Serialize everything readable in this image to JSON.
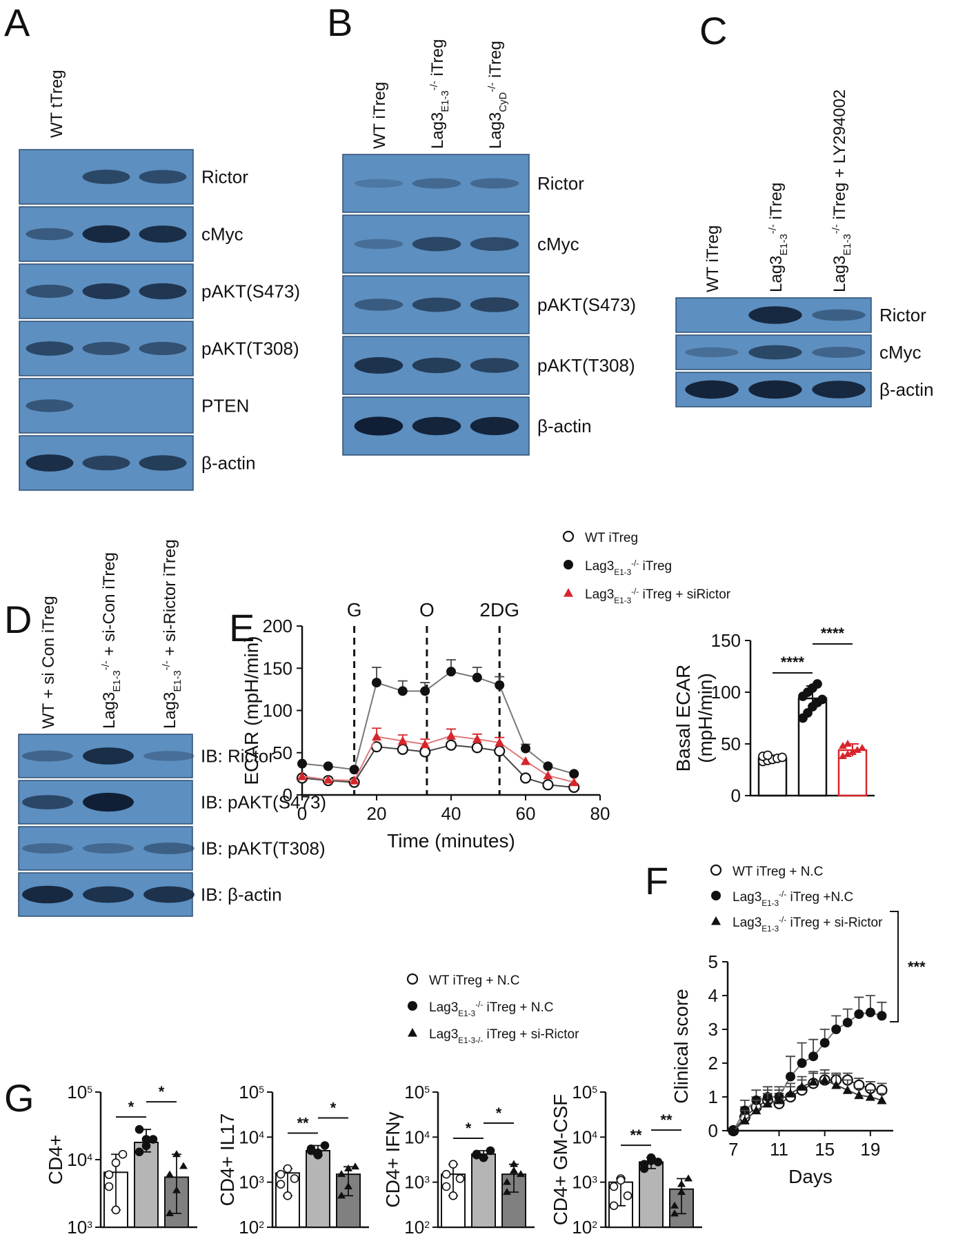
{
  "figure": {
    "panels": [
      "A",
      "B",
      "C",
      "D",
      "E",
      "F",
      "G"
    ],
    "colors": {
      "blot_bg": "#5d8fc0",
      "band": "#0d1a2e",
      "red": "#d7262b",
      "dark_bar": "#808080",
      "mid_bar": "#b5b5b5"
    },
    "A": {
      "lanes": [
        "WT tTreg"
      ],
      "blots": [
        {
          "label": "Rictor",
          "bands": [
            0,
            0.55,
            0.5
          ]
        },
        {
          "label": "cMyc",
          "bands": [
            0.35,
            0.85,
            0.8
          ]
        },
        {
          "label": "pAKT(S473)",
          "bands": [
            0.45,
            0.7,
            0.72
          ]
        },
        {
          "label": "pAKT(T308)",
          "bands": [
            0.55,
            0.45,
            0.45
          ]
        },
        {
          "label": "PTEN",
          "bands": [
            0.4,
            0,
            0
          ]
        },
        {
          "label": "β-actin",
          "bands": [
            0.8,
            0.6,
            0.65
          ]
        }
      ]
    },
    "B": {
      "lanes": [
        {
          "main": "WT iTreg",
          "sub": "",
          "sup": ""
        },
        {
          "main": "Lag3",
          "sub": "E1-3",
          "sup": "-/-",
          "tail": " iTreg"
        },
        {
          "main": "Lag3",
          "sub": "CyD",
          "sup": "-/-",
          "tail": " iTreg"
        }
      ],
      "blots": [
        {
          "label": "Rictor",
          "bands": [
            0.05,
            0.2,
            0.2
          ]
        },
        {
          "label": "cMyc",
          "bands": [
            0.15,
            0.55,
            0.5
          ]
        },
        {
          "label": "pAKT(S473)",
          "bands": [
            0.35,
            0.55,
            0.6
          ]
        },
        {
          "label": "pAKT(T308)",
          "bands": [
            0.75,
            0.65,
            0.6
          ]
        },
        {
          "label": "β-actin",
          "bands": [
            0.95,
            0.9,
            0.9
          ]
        }
      ]
    },
    "C": {
      "lanes": [
        {
          "main": "WT iTreg",
          "sub": "",
          "sup": ""
        },
        {
          "main": "Lag3",
          "sub": "E1-3",
          "sup": "-/-",
          "tail": " iTreg"
        },
        {
          "main": "Lag3",
          "sub": "E1-3",
          "sup": "-/-",
          "tail": " iTreg + LY294002"
        }
      ],
      "blots": [
        {
          "label": "Rictor",
          "bands": [
            0,
            0.85,
            0.3
          ]
        },
        {
          "label": "cMyc",
          "bands": [
            0.15,
            0.55,
            0.25
          ]
        },
        {
          "label": "β-actin",
          "bands": [
            0.9,
            0.9,
            0.85
          ]
        }
      ]
    },
    "D": {
      "lanes": [
        {
          "main": "WT + si Con iTreg",
          "sub": "",
          "sup": ""
        },
        {
          "main": "Lag3",
          "sub": "E1-3",
          "sup": "-/-",
          "tail": " + si-Con iTreg"
        },
        {
          "main": "Lag3",
          "sub": "E1-3",
          "sup": "-/-",
          "tail": " + si-Rictor iTreg"
        }
      ],
      "blots": [
        {
          "label": "IB: Rictor",
          "bands": [
            0.25,
            0.8,
            0.15
          ]
        },
        {
          "label": "IB: pAKT(S473)",
          "bands": [
            0.55,
            0.95,
            0
          ]
        },
        {
          "label": "IB: pAKT(T308)",
          "bands": [
            0.2,
            0.2,
            0.3
          ]
        },
        {
          "label": "IB: β-actin",
          "bands": [
            0.85,
            0.75,
            0.75
          ]
        }
      ]
    },
    "E_legend": [
      {
        "main": "WT iTreg",
        "sub": "",
        "sup": "",
        "tail": "",
        "marker": "open-circle"
      },
      {
        "main": "Lag3",
        "sub": "E1-3",
        "sup": "-/-",
        "tail": " iTreg",
        "marker": "filled-circle"
      },
      {
        "main": "Lag3",
        "sub": "E1-3",
        "sup": "-/-",
        "tail": " iTreg + siRictor",
        "marker": "red-triangle"
      }
    ],
    "F_legend": [
      {
        "main": "WT iTreg + N.C",
        "sub": "",
        "sup": "",
        "tail": "",
        "marker": "open-circle"
      },
      {
        "main": "Lag3",
        "sub": "E1-3",
        "sup": "-/-",
        "tail": " iTreg +N.C",
        "marker": "filled-circle"
      },
      {
        "main": "Lag3",
        "sub": "E1-3",
        "sup": "-/-",
        "tail": "  iTreg + si-Rictor",
        "marker": "triangle"
      }
    ],
    "G_legend": [
      {
        "main": "WT iTreg + N.C",
        "sub": "",
        "sup": "",
        "tail": "",
        "marker": "open-circle"
      },
      {
        "main": "Lag3",
        "sub": "E1-3",
        "sup": "-/-",
        "tail": " iTreg + N.C",
        "marker": "filled-circle"
      },
      {
        "main": "Lag3",
        "sub": "E1-3-/-",
        "sup": "",
        "tail": "  iTreg + si-Rictor",
        "marker": "triangle"
      }
    ]
  },
  "chart_data": [
    {
      "id": "E-line",
      "type": "line",
      "xlabel": "Time (minutes)",
      "ylabel": "ECAR (mpH/min)",
      "xlim": [
        0,
        80
      ],
      "ylim": [
        0,
        200
      ],
      "xticks": [
        0,
        20,
        40,
        60,
        80
      ],
      "yticks": [
        0,
        50,
        100,
        150,
        200
      ],
      "annotations": [
        {
          "text": "G",
          "x": 14
        },
        {
          "text": "O",
          "x": 33.5
        },
        {
          "text": "2DG",
          "x": 53
        }
      ],
      "x": [
        0,
        7,
        14,
        20,
        27,
        33,
        40,
        47,
        53,
        60,
        66,
        73
      ],
      "series": [
        {
          "name": "WT iTreg",
          "values": [
            20,
            17,
            15,
            57,
            54,
            51,
            59,
            56,
            52,
            20,
            12,
            9
          ],
          "marker": "open-circle",
          "color": "#111111"
        },
        {
          "name": "Lag3 E1-3 -/- iTreg",
          "values": [
            37,
            34,
            30,
            133,
            123,
            123,
            146,
            139,
            130,
            55,
            34,
            25
          ],
          "err": [
            0,
            0,
            0,
            18,
            12,
            10,
            14,
            12,
            10,
            5,
            0,
            0
          ],
          "marker": "filled-circle",
          "color": "#111111"
        },
        {
          "name": "Lag3 E1-3 -/- iTreg + siRictor",
          "values": [
            22,
            18,
            17,
            69,
            64,
            60,
            70,
            66,
            62,
            40,
            23,
            15
          ],
          "err": [
            0,
            0,
            0,
            10,
            7,
            6,
            8,
            6,
            6,
            0,
            0,
            0
          ],
          "marker": "red-triangle",
          "color": "#d7262b"
        }
      ]
    },
    {
      "id": "E-bar",
      "type": "bar",
      "ylabel": "Basal ECAR\n(mpH/min)",
      "ylim": [
        0,
        150
      ],
      "yticks": [
        0,
        50,
        100,
        150
      ],
      "values": [
        36,
        94,
        44
      ],
      "err": [
        3,
        12,
        6
      ],
      "points": [
        [
          33,
          34,
          35,
          36,
          37,
          38,
          39
        ],
        [
          75,
          80,
          86,
          90,
          93,
          96,
          100,
          104,
          108
        ],
        [
          38,
          40,
          42,
          44,
          46,
          48,
          50
        ]
      ],
      "significance": [
        "****",
        "****"
      ]
    },
    {
      "id": "F",
      "type": "line",
      "xlabel": "Days",
      "ylabel": "Clinical score",
      "xlim": [
        6.5,
        21
      ],
      "ylim": [
        0,
        5
      ],
      "xticks": [
        7,
        11,
        15,
        19
      ],
      "yticks": [
        0,
        1,
        2,
        3,
        4,
        5
      ],
      "x": [
        7,
        8,
        9,
        10,
        11,
        12,
        13,
        14,
        15,
        16,
        17,
        18,
        19,
        20
      ],
      "series": [
        {
          "name": "WT iTreg + N.C",
          "values": [
            0,
            0.4,
            0.7,
            0.9,
            0.8,
            1.0,
            1.2,
            1.4,
            1.5,
            1.5,
            1.5,
            1.35,
            1.25,
            1.2
          ],
          "err": [
            0,
            0.3,
            0.3,
            0.3,
            0.3,
            0.3,
            0.3,
            0.3,
            0.2,
            0.2,
            0.2,
            0.2,
            0.2,
            0.2
          ],
          "marker": "open-circle"
        },
        {
          "name": "Lag3 E1-3 -/- iTreg +N.C",
          "values": [
            0,
            0.6,
            0.9,
            1.0,
            1.0,
            1.6,
            2.0,
            2.2,
            2.6,
            3.0,
            3.2,
            3.45,
            3.5,
            3.4
          ],
          "err": [
            0,
            0.3,
            0.3,
            0.3,
            0.3,
            0.6,
            0.6,
            0.5,
            0.4,
            0.4,
            0.4,
            0.5,
            0.5,
            0.4
          ],
          "marker": "filled-circle"
        },
        {
          "name": "Lag3 E1-3 -/- iTreg + si-Rictor",
          "values": [
            0,
            0.3,
            0.6,
            0.8,
            0.9,
            1.1,
            1.3,
            1.45,
            1.5,
            1.35,
            1.2,
            1.05,
            1.0,
            0.9
          ],
          "err": [
            0,
            0.3,
            0.3,
            0.3,
            0.3,
            0.3,
            0.3,
            0.3,
            0.3,
            0.3,
            0.3,
            0.2,
            0.2,
            0.2
          ],
          "marker": "triangle"
        }
      ],
      "significance": "***"
    },
    {
      "id": "G1",
      "type": "bar",
      "ylabel": "CD4+",
      "yscale": "log",
      "ylim": [
        1000,
        100000
      ],
      "yticks": [
        {
          "b": "10",
          "e": "3"
        },
        {
          "b": "10",
          "e": "4"
        },
        {
          "b": "10",
          "e": "5"
        }
      ],
      "values": [
        6500,
        18000,
        5500
      ],
      "points": [
        [
          4000,
          9000,
          12000,
          6000,
          1800
        ],
        [
          13000,
          16000,
          20000,
          28000,
          20000
        ],
        [
          1600,
          3500,
          8000,
          6000,
          12000
        ]
      ],
      "significance": [
        "*",
        "*"
      ]
    },
    {
      "id": "G2",
      "type": "bar",
      "ylabel": "CD4+ IL17",
      "yscale": "log",
      "ylim": [
        100,
        100000
      ],
      "yticks": [
        {
          "b": "10",
          "e": "2"
        },
        {
          "b": "10",
          "e": "3"
        },
        {
          "b": "10",
          "e": "4"
        },
        {
          "b": "10",
          "e": "5"
        }
      ],
      "values": [
        1600,
        5000,
        1500
      ],
      "points": [
        [
          1500,
          2000,
          1200,
          900,
          500
        ],
        [
          5000,
          4500,
          6500,
          5500,
          4000
        ],
        [
          1500,
          800,
          2200,
          500,
          2000
        ]
      ],
      "significance": [
        "**",
        "*"
      ]
    },
    {
      "id": "G3",
      "type": "bar",
      "ylabel": "CD4+ IFNγ",
      "yscale": "log",
      "ylim": [
        100,
        100000
      ],
      "yticks": [
        {
          "b": "10",
          "e": "2"
        },
        {
          "b": "10",
          "e": "3"
        },
        {
          "b": "10",
          "e": "4"
        },
        {
          "b": "10",
          "e": "5"
        }
      ],
      "values": [
        1500,
        4200,
        1500
      ],
      "points": [
        [
          1500,
          2500,
          1200,
          800,
          500
        ],
        [
          4000,
          3500,
          5000,
          4200,
          3500
        ],
        [
          1000,
          2500,
          1500,
          600,
          1800
        ]
      ],
      "significance": [
        "*",
        "*"
      ]
    },
    {
      "id": "G4",
      "type": "bar",
      "ylabel": "CD4+ GM-CSF",
      "yscale": "log",
      "ylim": [
        100,
        100000
      ],
      "yticks": [
        {
          "b": "10",
          "e": "2"
        },
        {
          "b": "10",
          "e": "3"
        },
        {
          "b": "10",
          "e": "4"
        },
        {
          "b": "10",
          "e": "5"
        }
      ],
      "values": [
        1000,
        2800,
        700
      ],
      "points": [
        [
          800,
          1200,
          500,
          300,
          1100
        ],
        [
          2500,
          3500,
          2800,
          2000,
          3000
        ],
        [
          300,
          900,
          1200,
          200,
          600
        ]
      ],
      "significance": [
        "**",
        "**"
      ]
    }
  ]
}
